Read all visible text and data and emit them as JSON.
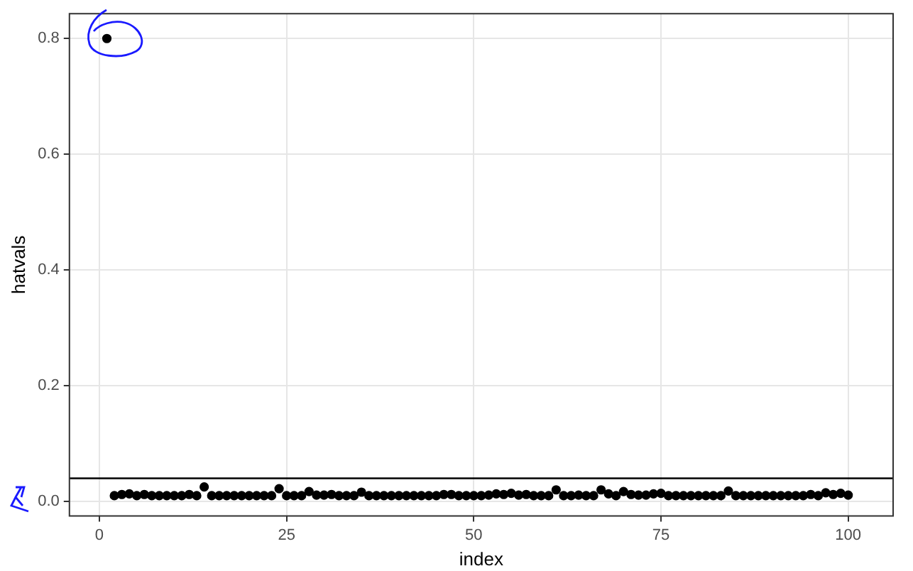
{
  "chart_data": {
    "type": "scatter",
    "xlabel": "index",
    "ylabel": "hatvals",
    "x": [
      1,
      2,
      3,
      4,
      5,
      6,
      7,
      8,
      9,
      10,
      11,
      12,
      13,
      14,
      15,
      16,
      17,
      18,
      19,
      20,
      21,
      22,
      23,
      24,
      25,
      26,
      27,
      28,
      29,
      30,
      31,
      32,
      33,
      34,
      35,
      36,
      37,
      38,
      39,
      40,
      41,
      42,
      43,
      44,
      45,
      46,
      47,
      48,
      49,
      50,
      51,
      52,
      53,
      54,
      55,
      56,
      57,
      58,
      59,
      60,
      61,
      62,
      63,
      64,
      65,
      66,
      67,
      68,
      69,
      70,
      71,
      72,
      73,
      74,
      75,
      76,
      77,
      78,
      79,
      80,
      81,
      82,
      83,
      84,
      85,
      86,
      87,
      88,
      89,
      90,
      91,
      92,
      93,
      94,
      95,
      96,
      97,
      98,
      99,
      100
    ],
    "series": [
      {
        "color": "#000000",
        "values": [
          0.8,
          0.01,
          0.012,
          0.013,
          0.01,
          0.012,
          0.01,
          0.01,
          0.01,
          0.01,
          0.01,
          0.012,
          0.01,
          0.025,
          0.01,
          0.01,
          0.01,
          0.01,
          0.01,
          0.01,
          0.01,
          0.01,
          0.01,
          0.022,
          0.01,
          0.01,
          0.01,
          0.017,
          0.011,
          0.011,
          0.012,
          0.01,
          0.01,
          0.01,
          0.016,
          0.01,
          0.01,
          0.01,
          0.01,
          0.01,
          0.01,
          0.01,
          0.01,
          0.01,
          0.01,
          0.012,
          0.012,
          0.01,
          0.01,
          0.01,
          0.01,
          0.011,
          0.013,
          0.012,
          0.014,
          0.011,
          0.012,
          0.01,
          0.01,
          0.01,
          0.02,
          0.01,
          0.01,
          0.011,
          0.01,
          0.01,
          0.02,
          0.013,
          0.01,
          0.017,
          0.012,
          0.011,
          0.011,
          0.013,
          0.014,
          0.01,
          0.01,
          0.01,
          0.01,
          0.01,
          0.01,
          0.01,
          0.01,
          0.018,
          0.01,
          0.01,
          0.01,
          0.01,
          0.01,
          0.01,
          0.01,
          0.01,
          0.01,
          0.01,
          0.012,
          0.01,
          0.015,
          0.012,
          0.014,
          0.011
        ]
      }
    ],
    "xlim": [
      -4,
      106
    ],
    "xticks": [
      0,
      25,
      50,
      75,
      100
    ],
    "ylim": [
      -0.025,
      0.843
    ],
    "yticks": [
      {
        "value": 0,
        "label": "0.0"
      },
      0.2,
      0.4,
      0.6,
      0.8
    ],
    "ref_lines": [
      {
        "axis": "y",
        "value": 0.04,
        "color": "#000000"
      }
    ],
    "grid": true,
    "marker": "circle",
    "legend": false
  }
}
